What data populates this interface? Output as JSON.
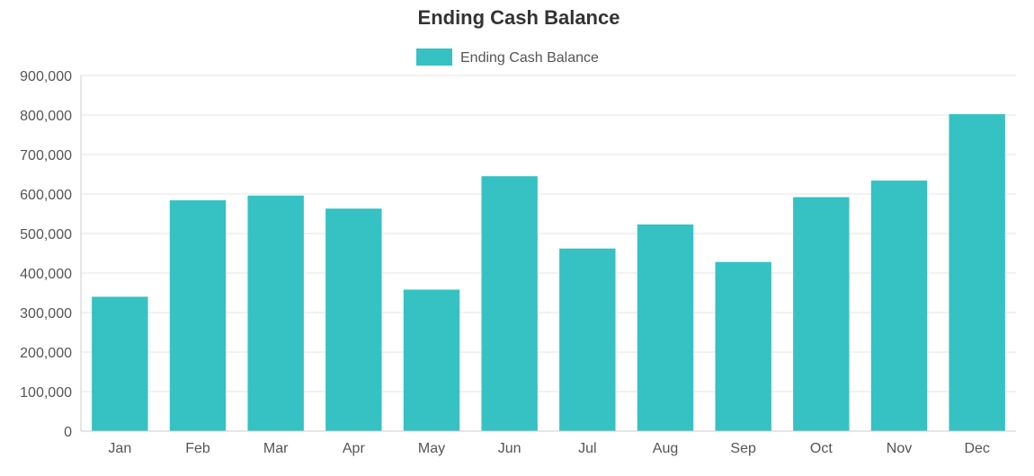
{
  "chart_data": {
    "type": "bar",
    "title": "Ending Cash Balance",
    "xlabel": "",
    "ylabel": "",
    "legend_position": "top-center",
    "grid": true,
    "categories": [
      "Jan",
      "Feb",
      "Mar",
      "Apr",
      "May",
      "Jun",
      "Jul",
      "Aug",
      "Sep",
      "Oct",
      "Nov",
      "Dec"
    ],
    "series": [
      {
        "name": "Ending Cash Balance",
        "color": "#36c1c3",
        "values": [
          340000,
          584000,
          596000,
          563000,
          358000,
          645000,
          462000,
          523000,
          428000,
          592000,
          634000,
          802000
        ]
      }
    ],
    "ylim": [
      0,
      900000
    ],
    "y_ticks": [
      0,
      100000,
      200000,
      300000,
      400000,
      500000,
      600000,
      700000,
      800000,
      900000
    ],
    "y_tick_labels": [
      "0",
      "100,000",
      "200,000",
      "300,000",
      "400,000",
      "500,000",
      "600,000",
      "700,000",
      "800,000",
      "900,000"
    ]
  }
}
